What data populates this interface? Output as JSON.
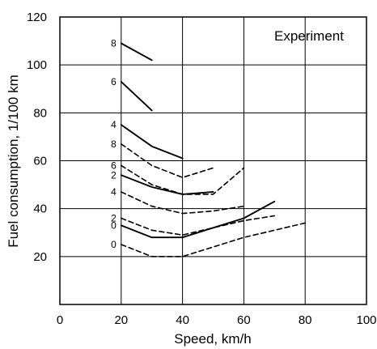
{
  "chart_data": {
    "type": "line",
    "title": "",
    "xlabel": "Speed, km/h",
    "ylabel": "Fuel consumption, 1/100 km",
    "xlim": [
      0,
      100
    ],
    "ylim": [
      0,
      120
    ],
    "grid": true,
    "x_ticks": [
      0,
      20,
      40,
      60,
      80,
      100
    ],
    "y_ticks": [
      20,
      40,
      60,
      80,
      100,
      120
    ],
    "annotation": "Experiment",
    "series": [
      {
        "label": "8",
        "style": "solid",
        "x": [
          20,
          30
        ],
        "y": [
          109,
          102
        ]
      },
      {
        "label": "6",
        "style": "solid",
        "x": [
          20,
          30
        ],
        "y": [
          93,
          81
        ]
      },
      {
        "label": "4",
        "style": "solid",
        "x": [
          20,
          30,
          40
        ],
        "y": [
          75,
          66,
          61
        ]
      },
      {
        "label": "2",
        "style": "solid",
        "x": [
          20,
          30,
          40,
          50
        ],
        "y": [
          54,
          49,
          46,
          47
        ]
      },
      {
        "label": "0",
        "style": "solid",
        "x": [
          20,
          30,
          40,
          50,
          60,
          70
        ],
        "y": [
          33,
          28,
          28,
          32,
          36,
          43
        ]
      },
      {
        "label": "8",
        "style": "dashed",
        "x": [
          20,
          30,
          40,
          50
        ],
        "y": [
          67,
          58,
          53,
          57
        ]
      },
      {
        "label": "6",
        "style": "dashed",
        "x": [
          20,
          30,
          40,
          50,
          60
        ],
        "y": [
          58,
          50,
          46,
          46,
          57
        ]
      },
      {
        "label": "4",
        "style": "dashed",
        "x": [
          20,
          30,
          40,
          50,
          60
        ],
        "y": [
          47,
          41,
          38,
          39,
          41
        ]
      },
      {
        "label": "2",
        "style": "dashed",
        "x": [
          20,
          30,
          40,
          50,
          60,
          70
        ],
        "y": [
          36,
          31,
          29,
          32,
          35,
          37
        ]
      },
      {
        "label": "0",
        "style": "dashed",
        "x": [
          20,
          30,
          40,
          50,
          60,
          70,
          80
        ],
        "y": [
          25,
          20,
          20,
          24,
          28,
          31,
          34
        ]
      }
    ]
  }
}
